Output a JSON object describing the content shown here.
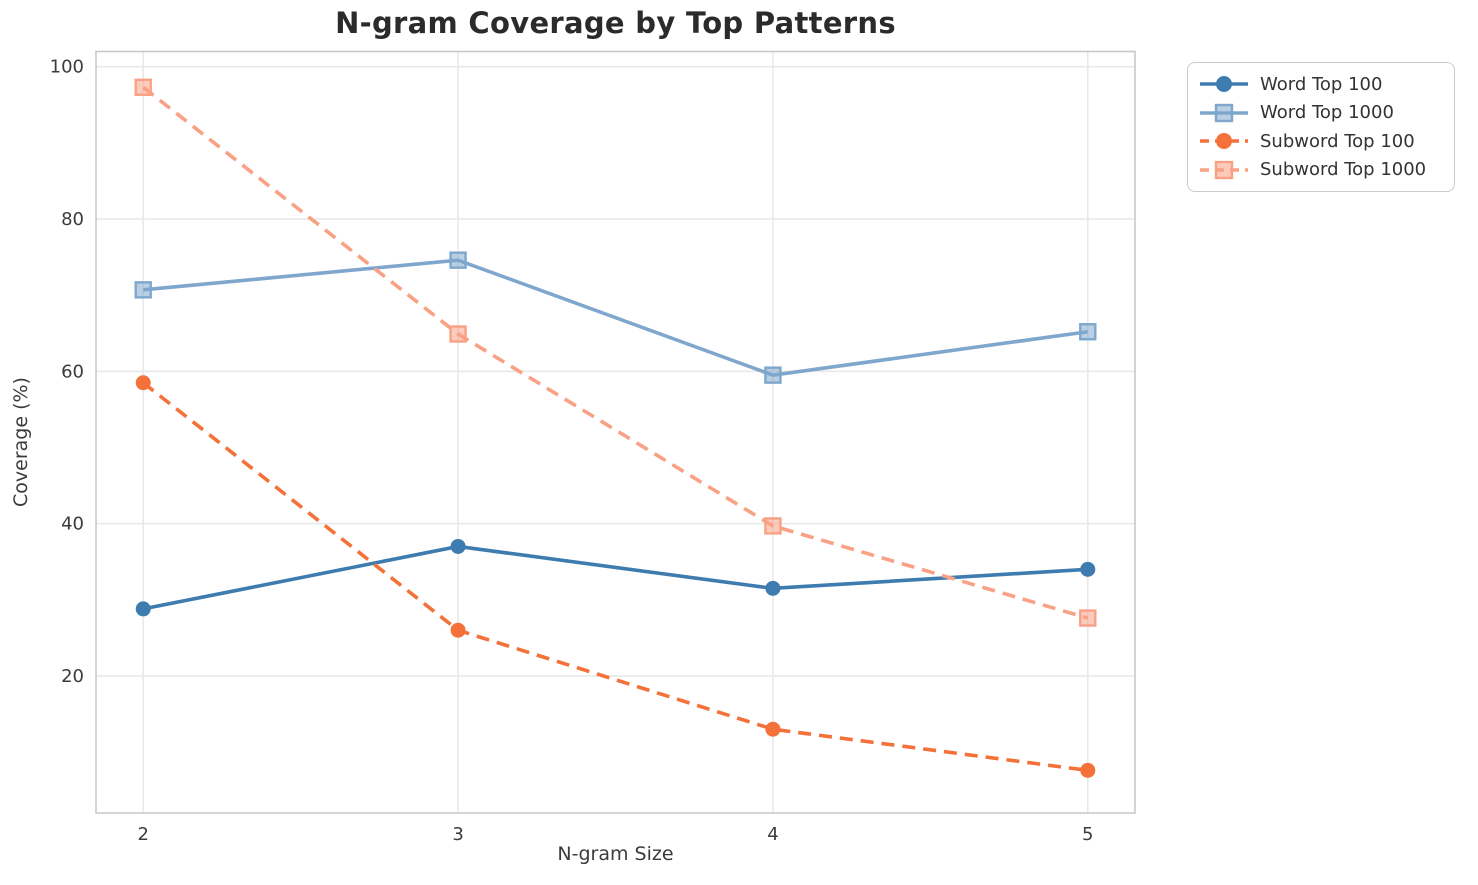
{
  "chart_data": {
    "type": "line",
    "title": "N-gram Coverage by Top Patterns",
    "xlabel": "N-gram Size",
    "ylabel": "Coverage (%)",
    "x": [
      2,
      3,
      4,
      5
    ],
    "x_ticks": [
      "2",
      "3",
      "4",
      "5"
    ],
    "y_ticks": [
      "20",
      "40",
      "60",
      "80",
      "100"
    ],
    "y_tick_values": [
      20,
      40,
      60,
      80,
      100
    ],
    "xlim": [
      1.85,
      5.15
    ],
    "ylim": [
      2,
      102
    ],
    "grid": true,
    "legend_position": "outside upper right",
    "series": [
      {
        "name": "Word Top 100",
        "color": "#3e7cb0",
        "line_style": "solid",
        "marker": "circle",
        "values": [
          28.8,
          37.0,
          31.5,
          34.0
        ]
      },
      {
        "name": "Word Top 1000",
        "color": "#7fa7ce",
        "line_style": "solid",
        "marker": "square",
        "values": [
          70.7,
          74.6,
          59.5,
          65.2
        ]
      },
      {
        "name": "Subword Top 100",
        "color": "#f4713a",
        "line_style": "dashed",
        "marker": "circle",
        "values": [
          58.5,
          26.0,
          13.0,
          7.6
        ]
      },
      {
        "name": "Subword Top 1000",
        "color": "#f9a185",
        "line_style": "dashed",
        "marker": "square",
        "values": [
          97.3,
          64.9,
          39.7,
          27.6
        ]
      }
    ],
    "colors": {
      "grid": "#e9e9e9",
      "spine": "#c9c9c9",
      "tick_text": "#3b3b3b",
      "title_text": "#2b2b2b"
    }
  }
}
